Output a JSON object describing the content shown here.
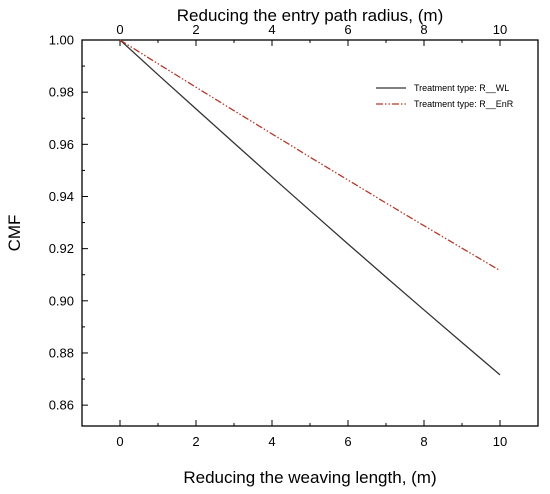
{
  "chart_data": {
    "type": "line",
    "title": "",
    "xlabel": "Reducing the weaving length, (m)",
    "x2label": "Reducing the entry path radius, (m)",
    "ylabel": "CMF",
    "xlim": [
      -1,
      11
    ],
    "ylim": [
      0.852,
      1.0
    ],
    "xticks": [
      "0",
      "2",
      "4",
      "6",
      "8",
      "10"
    ],
    "yticks": [
      "0.86",
      "0.88",
      "0.90",
      "0.92",
      "0.94",
      "0.96",
      "0.98",
      "1.00"
    ],
    "grid": false,
    "legend_position": "top-right",
    "series": [
      {
        "name": "Treatment type: R__WL",
        "color": "#333333",
        "style": "solid",
        "x": [
          0,
          1,
          2,
          3,
          4,
          5,
          6,
          7,
          8,
          9,
          10
        ],
        "y": [
          1.0,
          0.9867,
          0.9736,
          0.9605,
          0.9475,
          0.9346,
          0.9218,
          0.9091,
          0.8965,
          0.884,
          0.8716
        ]
      },
      {
        "name": "Treatment type: R__EnR",
        "color": "#b23a2a",
        "style": "dash-dot-dot",
        "x": [
          0,
          1,
          2,
          3,
          4,
          5,
          6,
          7,
          8,
          9,
          10
        ],
        "y": [
          1.0,
          0.9909,
          0.9819,
          0.9729,
          0.964,
          0.9551,
          0.9463,
          0.9375,
          0.9288,
          0.9202,
          0.9116
        ]
      }
    ]
  }
}
